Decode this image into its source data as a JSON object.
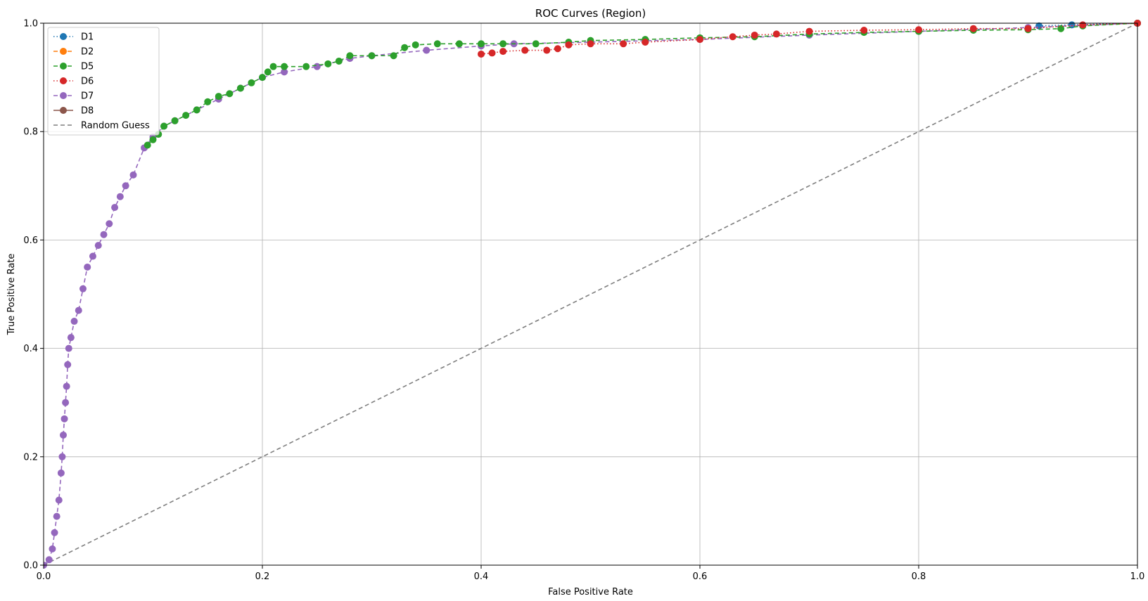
{
  "chart_data": {
    "type": "line",
    "title": "ROC Curves (Region)",
    "xlabel": "False Positive Rate",
    "ylabel": "True Positive Rate",
    "xlim": [
      0,
      1
    ],
    "ylim": [
      0,
      1
    ],
    "xticks": [
      "0.0",
      "0.2",
      "0.4",
      "0.6",
      "0.8",
      "1.0"
    ],
    "yticks": [
      "0.0",
      "0.2",
      "0.4",
      "0.6",
      "0.8",
      "1.0"
    ],
    "grid": true,
    "legend_position": "upper-left",
    "series": [
      {
        "name": "D1",
        "color": "#1f77b4",
        "linestyle": "dotted",
        "marker": "circle",
        "x": [
          0.91,
          0.94,
          1.0
        ],
        "y": [
          0.995,
          0.997,
          1.0
        ]
      },
      {
        "name": "D2",
        "color": "#ff7f0e",
        "linestyle": "dashed",
        "marker": "circle",
        "x": [
          1.0
        ],
        "y": [
          1.0
        ]
      },
      {
        "name": "D5",
        "color": "#2ca02c",
        "linestyle": "dashed",
        "marker": "circle",
        "x": [
          0.095,
          0.1,
          0.105,
          0.11,
          0.12,
          0.13,
          0.14,
          0.15,
          0.16,
          0.17,
          0.18,
          0.19,
          0.2,
          0.205,
          0.21,
          0.22,
          0.24,
          0.26,
          0.27,
          0.28,
          0.3,
          0.32,
          0.33,
          0.34,
          0.36,
          0.38,
          0.4,
          0.42,
          0.45,
          0.48,
          0.5,
          0.55,
          0.6,
          0.65,
          0.7,
          0.75,
          0.8,
          0.85,
          0.9,
          0.93,
          0.95,
          1.0
        ],
        "y": [
          0.775,
          0.785,
          0.795,
          0.81,
          0.82,
          0.83,
          0.84,
          0.855,
          0.865,
          0.87,
          0.88,
          0.89,
          0.9,
          0.91,
          0.92,
          0.92,
          0.92,
          0.925,
          0.93,
          0.94,
          0.94,
          0.94,
          0.955,
          0.96,
          0.962,
          0.962,
          0.962,
          0.962,
          0.962,
          0.965,
          0.968,
          0.97,
          0.973,
          0.975,
          0.98,
          0.983,
          0.985,
          0.987,
          0.988,
          0.99,
          0.995,
          1.0
        ]
      },
      {
        "name": "D6",
        "color": "#d62728",
        "linestyle": "dotted",
        "marker": "circle",
        "x": [
          0.4,
          0.41,
          0.42,
          0.44,
          0.46,
          0.47,
          0.48,
          0.5,
          0.53,
          0.55,
          0.6,
          0.63,
          0.65,
          0.67,
          0.7,
          0.75,
          0.8,
          0.85,
          0.9,
          0.95,
          1.0
        ],
        "y": [
          0.943,
          0.945,
          0.948,
          0.95,
          0.95,
          0.953,
          0.96,
          0.962,
          0.962,
          0.965,
          0.97,
          0.975,
          0.978,
          0.98,
          0.985,
          0.987,
          0.988,
          0.99,
          0.99,
          0.997,
          1.0
        ]
      },
      {
        "name": "D7",
        "color": "#9467bd",
        "linestyle": "dashed",
        "marker": "circle",
        "x": [
          0.0,
          0.005,
          0.008,
          0.01,
          0.012,
          0.014,
          0.016,
          0.017,
          0.018,
          0.019,
          0.02,
          0.021,
          0.022,
          0.023,
          0.025,
          0.028,
          0.032,
          0.036,
          0.04,
          0.045,
          0.05,
          0.055,
          0.06,
          0.065,
          0.07,
          0.075,
          0.082,
          0.092,
          0.1,
          0.11,
          0.12,
          0.14,
          0.16,
          0.18,
          0.2,
          0.22,
          0.25,
          0.28,
          0.3,
          0.35,
          0.4,
          0.43,
          0.5,
          0.6,
          0.7,
          0.8,
          0.9,
          1.0
        ],
        "y": [
          0.0,
          0.01,
          0.03,
          0.06,
          0.09,
          0.12,
          0.17,
          0.2,
          0.24,
          0.27,
          0.3,
          0.33,
          0.37,
          0.4,
          0.42,
          0.45,
          0.47,
          0.51,
          0.55,
          0.57,
          0.59,
          0.61,
          0.63,
          0.66,
          0.68,
          0.7,
          0.72,
          0.77,
          0.79,
          0.81,
          0.82,
          0.84,
          0.86,
          0.88,
          0.9,
          0.91,
          0.92,
          0.935,
          0.94,
          0.95,
          0.958,
          0.962,
          0.965,
          0.97,
          0.978,
          0.985,
          0.992,
          1.0
        ]
      },
      {
        "name": "D8",
        "color": "#8c564b",
        "linestyle": "solid",
        "marker": "circle",
        "x": [
          1.0
        ],
        "y": [
          1.0
        ]
      },
      {
        "name": "Random Guess",
        "color": "#7f7f7f",
        "linestyle": "dashed",
        "marker": "none",
        "x": [
          0,
          1
        ],
        "y": [
          0,
          1
        ]
      }
    ]
  }
}
